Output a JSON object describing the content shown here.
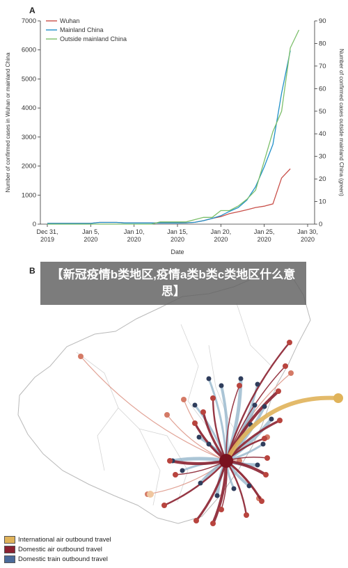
{
  "panels": {
    "a": "A",
    "b": "B"
  },
  "caption": "【新冠疫情b类地区,疫情a类b类c类地区什么意思】",
  "chart_data": {
    "type": "line",
    "xlabel": "Date",
    "ylabel_left": "Number of confirmed cases in Wuhan or mainland China",
    "ylabel_right": "Number of confirmed cases outside mainland China (green)",
    "ylim_left": [
      0,
      7000
    ],
    "ylim_right": [
      0,
      90
    ],
    "yticks_left": [
      "0",
      "1000",
      "2000",
      "3000",
      "4000",
      "5000",
      "6000",
      "7000"
    ],
    "yticks_right": [
      "0",
      "10",
      "20",
      "30",
      "40",
      "50",
      "60",
      "70",
      "80",
      "90"
    ],
    "xticks": [
      {
        "l1": "Dec 31,",
        "l2": "2019"
      },
      {
        "l1": "Jan 5,",
        "l2": "2020"
      },
      {
        "l1": "Jan 10,",
        "l2": "2020"
      },
      {
        "l1": "Jan 15,",
        "l2": "2020"
      },
      {
        "l1": "Jan 20,",
        "l2": "2020"
      },
      {
        "l1": "Jan 25,",
        "l2": "2020"
      },
      {
        "l1": "Jan 30,",
        "l2": "2020"
      }
    ],
    "x_dates": [
      "Dec 31",
      "Jan 1",
      "Jan 2",
      "Jan 3",
      "Jan 4",
      "Jan 5",
      "Jan 6",
      "Jan 7",
      "Jan 8",
      "Jan 9",
      "Jan 10",
      "Jan 11",
      "Jan 12",
      "Jan 13",
      "Jan 14",
      "Jan 15",
      "Jan 16",
      "Jan 17",
      "Jan 18",
      "Jan 19",
      "Jan 20",
      "Jan 21",
      "Jan 22",
      "Jan 23",
      "Jan 24",
      "Jan 25",
      "Jan 26",
      "Jan 27",
      "Jan 28",
      "Jan 29"
    ],
    "legend_position": "top-left",
    "series": [
      {
        "name": "Wuhan",
        "color": "#c9504a",
        "axis": "left",
        "values": [
          27,
          27,
          27,
          27,
          27,
          27,
          59,
          59,
          59,
          41,
          41,
          41,
          41,
          41,
          41,
          41,
          45,
          62,
          121,
          198,
          258,
          363,
          425,
          495,
          572,
          618,
          698,
          1590,
          1905,
          null
        ]
      },
      {
        "name": "Mainland China",
        "color": "#1f8fc9",
        "axis": "left",
        "values": [
          27,
          27,
          27,
          27,
          27,
          27,
          59,
          59,
          59,
          41,
          41,
          41,
          41,
          41,
          41,
          41,
          45,
          62,
          121,
          198,
          291,
          440,
          571,
          830,
          1287,
          1975,
          2744,
          4515,
          5974,
          null
        ]
      },
      {
        "name": "Outside mainland China",
        "color": "#7cbf6a",
        "axis": "right",
        "values": [
          0,
          0,
          0,
          0,
          0,
          0,
          0,
          0,
          0,
          0,
          0,
          0,
          0,
          1,
          1,
          1,
          1,
          2,
          3,
          3,
          6,
          6,
          8,
          11,
          15,
          28,
          41,
          50,
          78,
          86
        ]
      }
    ]
  },
  "map": {
    "legend": [
      {
        "label": "International air outbound travel",
        "color": "#e0b35a"
      },
      {
        "label": "Domestic air outbound travel",
        "color": "#8b2130"
      },
      {
        "label": "Domestic train outbound travel",
        "color": "#4a6a9a"
      }
    ]
  }
}
